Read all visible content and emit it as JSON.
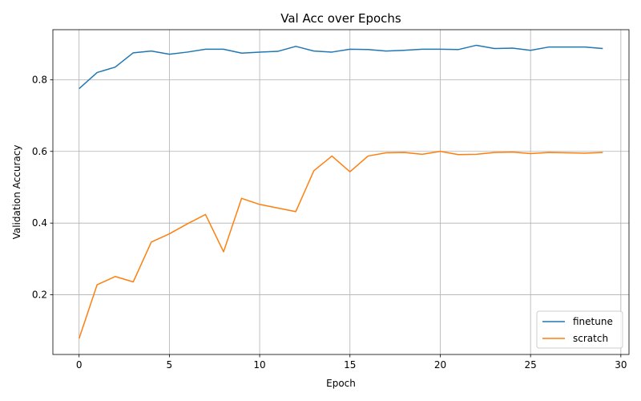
{
  "chart_data": {
    "type": "line",
    "title": "Val Acc over Epochs",
    "xlabel": "Epoch",
    "ylabel": "Validation Accuracy",
    "xlim": [
      -1.45,
      30.45
    ],
    "ylim": [
      0.0335,
      0.9395
    ],
    "xticks": [
      0,
      5,
      10,
      15,
      20,
      25,
      30
    ],
    "yticks": [
      0.2,
      0.4,
      0.6,
      0.8
    ],
    "grid": true,
    "legend_position": "lower-right",
    "x": [
      0,
      1,
      2,
      3,
      4,
      5,
      6,
      7,
      8,
      9,
      10,
      11,
      12,
      13,
      14,
      15,
      16,
      17,
      18,
      19,
      20,
      21,
      22,
      23,
      24,
      25,
      26,
      27,
      28,
      29
    ],
    "series": [
      {
        "name": "finetune",
        "color": "#1f77b4",
        "values": [
          0.775,
          0.82,
          0.835,
          0.875,
          0.88,
          0.871,
          0.877,
          0.885,
          0.885,
          0.874,
          0.877,
          0.879,
          0.893,
          0.88,
          0.877,
          0.885,
          0.884,
          0.88,
          0.882,
          0.885,
          0.885,
          0.884,
          0.896,
          0.887,
          0.888,
          0.882,
          0.891,
          0.891,
          0.891,
          0.887
        ]
      },
      {
        "name": "scratch",
        "color": "#ff7f0e",
        "values": [
          0.078,
          0.228,
          0.251,
          0.236,
          0.347,
          0.37,
          0.398,
          0.424,
          0.32,
          0.469,
          0.452,
          0.442,
          0.432,
          0.546,
          0.587,
          0.543,
          0.587,
          0.596,
          0.597,
          0.592,
          0.6,
          0.591,
          0.592,
          0.597,
          0.598,
          0.594,
          0.597,
          0.596,
          0.595,
          0.597
        ]
      }
    ]
  }
}
